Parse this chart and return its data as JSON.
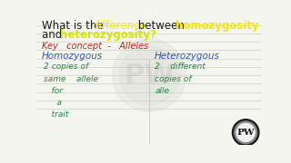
{
  "bg_color": "#f5f5f0",
  "title_line1": [
    {
      "text": "What is the ",
      "color": "#1a1a1a",
      "bold": false
    },
    {
      "text": "difference",
      "color": "#f5e800",
      "bold": false
    },
    {
      "text": " between ",
      "color": "#1a1a1a",
      "bold": false
    },
    {
      "text": "homozygosity",
      "color": "#f5e800",
      "bold": true
    }
  ],
  "title_line2": [
    {
      "text": "and ",
      "color": "#1a1a1a",
      "bold": false
    },
    {
      "text": "heterozygosity?",
      "color": "#d4e600",
      "bold": true
    }
  ],
  "key_concept": "Key   concept  -   Alleles",
  "key_concept_color": "#cc2222",
  "homo_header": "Homozygous",
  "hetero_header": "Heterozygous",
  "header_color": "#3355aa",
  "homo_body": "2 copies of\nsame    allele\n   for\n     a\n   trait",
  "hetero_body": "2    different\ncopies of\nalle",
  "body_color": "#228844",
  "line_color": "#b0b8b0",
  "logo_bg": "#2a2a2a",
  "logo_ring": "#888888",
  "logo_text": "PW",
  "title_fontsize": 8.5,
  "key_fontsize": 7.0,
  "header_fontsize": 7.5,
  "body_fontsize": 6.5
}
